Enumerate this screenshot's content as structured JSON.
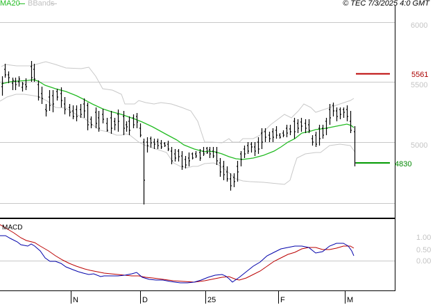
{
  "header": {
    "legend_ma": "MA20",
    "legend_bb": "BBands",
    "copyright": "© TEC 7/3/2025 4:0 GMT"
  },
  "colors": {
    "ma20": "#22bb22",
    "bbands": "#c8c8c8",
    "bars": "#000000",
    "macd": "#0000aa",
    "signal": "#bb0000",
    "resistance": "#bb0000",
    "support": "#008800",
    "grid": "#c8c8c8"
  },
  "markers": {
    "resistance_label": "5561",
    "support_label": "4830"
  },
  "macd_panel": {
    "title": "MACD",
    "ticks": [
      "1.00",
      "0.50",
      "0.00"
    ]
  },
  "chart_data": [
    {
      "type": "ohlc",
      "title": "Price with MA20 and Bollinger Bands",
      "xlabel": "",
      "ylabel": "",
      "ylim": [
        4450,
        6200
      ],
      "y_ticks": [
        "6000",
        "5500",
        "5000"
      ],
      "x_ticks": [
        "N",
        "D",
        "25",
        "F",
        "M"
      ],
      "legend": [
        "MA20",
        "BBands"
      ],
      "grid": true,
      "annotations": [
        {
          "label": "5561",
          "value": 5561,
          "color": "#bb0000"
        },
        {
          "label": "4830",
          "value": 4830,
          "color": "#008800"
        }
      ],
      "series": [
        {
          "name": "Close (approx.)",
          "values": [
            5480,
            5560,
            5500,
            5520,
            5480,
            5560,
            5420,
            5390,
            5450,
            5380,
            5330,
            5320,
            5290,
            5250,
            5230,
            5200,
            5220,
            5170,
            5150,
            5180,
            5150,
            5100,
            4980,
            4980,
            5000,
            4990,
            4950,
            4900,
            4860,
            4850,
            4890,
            4930,
            4960,
            4930,
            4810,
            4740,
            4820,
            4990,
            5050,
            5080,
            5140,
            5120,
            5130,
            5150,
            5130,
            5060,
            5010,
            5230,
            5240,
            5210,
            5080,
            4830
          ]
        },
        {
          "name": "MA20",
          "values": [
            5480,
            5500,
            5510,
            5490,
            5440,
            5400,
            5360,
            5330,
            5300,
            5270,
            5250,
            5220,
            5180,
            5150,
            5100,
            5060,
            5030,
            5010,
            4990,
            4960,
            4950,
            4940,
            4920,
            4910,
            4900,
            4890,
            4880,
            4870,
            4860,
            4860,
            4870,
            4900,
            4930,
            4950,
            4980,
            5000,
            5030,
            5060,
            5100,
            5120,
            5140,
            5150,
            5160,
            5180,
            5200,
            5210,
            5220,
            5230,
            5240,
            5200
          ]
        },
        {
          "name": "BBands Upper",
          "values": [
            5690,
            5700,
            5720,
            5680,
            5610,
            5540,
            5530,
            5450,
            5380,
            5360,
            5380,
            5350,
            5320,
            5300,
            5350,
            5370,
            5280,
            5150,
            5080,
            5000,
            4990,
            5030,
            5060,
            5100,
            5180,
            5230,
            5260,
            5260,
            5240,
            5260,
            5270,
            5310,
            5350,
            5370
          ]
        },
        {
          "name": "BBands Lower",
          "values": [
            5330,
            5360,
            5330,
            5280,
            5240,
            5200,
            5150,
            5100,
            5070,
            5090,
            5020,
            4960,
            4880,
            4730,
            4630,
            4620,
            4660,
            4700,
            4720,
            4690,
            4680,
            4620,
            4560,
            4540,
            4610,
            4730,
            4830,
            4880,
            4930,
            4960,
            4970,
            4990,
            4960
          ]
        }
      ]
    },
    {
      "type": "line",
      "title": "MACD",
      "ylim": [
        -1.7,
        1.9
      ],
      "y_ticks": [
        "1.00",
        "0.50",
        "0.00"
      ],
      "x_ticks": [
        "N",
        "D",
        "25",
        "F",
        "M"
      ],
      "series": [
        {
          "name": "MACD",
          "color": "#0000aa",
          "values": [
            1.4,
            1.3,
            1.1,
            0.9,
            0.8,
            0.3,
            0.1,
            0.05,
            -0.3,
            -0.5,
            -0.6,
            -0.6,
            -0.7,
            -0.8,
            -0.7,
            -0.8,
            -0.6,
            -0.7,
            -0.8,
            -0.95,
            -1.1,
            -1.0,
            -0.9,
            -0.85,
            -0.9,
            -0.6,
            -0.55,
            -0.6,
            -0.95,
            -0.75,
            -0.3,
            -0.15,
            0.2,
            0.5,
            0.6,
            0.8,
            0.85,
            0.85,
            0.8,
            0.5,
            0.65,
            0.9,
            0.9,
            0.7,
            0.3
          ]
        },
        {
          "name": "Signal",
          "color": "#bb0000",
          "values": [
            1.5,
            1.35,
            1.1,
            1.0,
            0.85,
            0.6,
            0.4,
            0.2,
            -0.1,
            -0.25,
            -0.45,
            -0.55,
            -0.6,
            -0.65,
            -0.75,
            -0.8,
            -0.85,
            -0.9,
            -0.95,
            -0.95,
            -0.9,
            -0.85,
            -0.75,
            -0.7,
            -0.7,
            -0.8,
            -0.8,
            -0.7,
            -0.5,
            -0.35,
            -0.15,
            0.1,
            0.35,
            0.55,
            0.65,
            0.75,
            0.75,
            0.75,
            0.7,
            0.65,
            0.75,
            0.85,
            0.8,
            0.6
          ]
        }
      ]
    }
  ]
}
